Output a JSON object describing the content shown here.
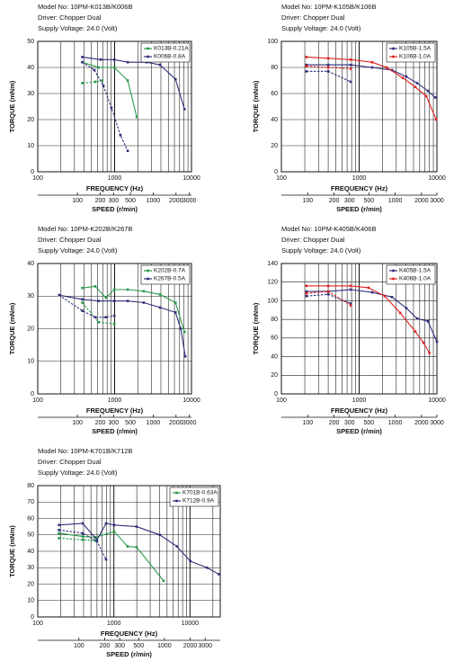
{
  "chart_data": [
    {
      "type": "line",
      "title": "Model No: 10PM-K013B/K006B",
      "subtitles": [
        "Driver: Chopper Dual",
        "Supply Voltage: 24.0 (Volt)"
      ],
      "xlabel": "FREQUENCY (Hz)",
      "ylabel": "TORQUE (mNm)",
      "x2label": "SPEED (r/min)",
      "xscale": "log",
      "xlim": [
        100,
        10000
      ],
      "xticks": [
        100,
        1000,
        10000
      ],
      "x2scale": "log",
      "x2lim": [
        30,
        3200
      ],
      "x2ticks": [
        100,
        200,
        300,
        500,
        1000,
        2000,
        3000
      ],
      "ylim": [
        0,
        50
      ],
      "yticks": [
        0,
        10,
        20,
        30,
        40,
        50
      ],
      "grid": true,
      "legend": "upper right",
      "series": [
        {
          "name": "K013B-0.21A",
          "color": "#2a9a4a",
          "style": "solid",
          "x": [
            380,
            620,
            990,
            1480,
            1940
          ],
          "values": [
            42,
            40,
            40,
            35,
            21
          ]
        },
        {
          "name": "K006B-0.8A",
          "color": "#2e2e7a",
          "style": "solid",
          "x": [
            380,
            660,
            990,
            1480,
            2600,
            3900,
            6200,
            8100
          ],
          "values": [
            44,
            43,
            43,
            42,
            42,
            41,
            35.5,
            24
          ]
        },
        {
          "color": "#2a9a4a",
          "style": "dashed",
          "x": [
            380,
            560,
            690
          ],
          "values": [
            34,
            34.5,
            35
          ]
        },
        {
          "color": "#2e2e7a",
          "style": "dashed",
          "x": [
            380,
            545,
            715,
            910,
            1190,
            1480
          ],
          "values": [
            42,
            39,
            33,
            24.5,
            14,
            8
          ]
        }
      ]
    },
    {
      "type": "line",
      "title": "Model No: 10PM-K105B/K106B",
      "subtitles": [
        "Driver: Chopper Dual",
        "Supply Voltage: 24.0 (Volt)"
      ],
      "xlabel": "FREQUENCY (Hz)",
      "ylabel": "TORQUE (mNm)",
      "x2label": "SPEED (r/min)",
      "xscale": "log",
      "xlim": [
        100,
        10000
      ],
      "xticks": [
        100,
        1000,
        10000
      ],
      "x2scale": "log",
      "x2lim": [
        50,
        3000
      ],
      "x2ticks": [
        100,
        200,
        300,
        500,
        1000,
        2000,
        3000
      ],
      "ylim": [
        0,
        100
      ],
      "yticks": [
        0,
        20,
        40,
        60,
        80,
        100
      ],
      "grid": true,
      "legend": "upper right",
      "series": [
        {
          "name": "K105B-1.5A",
          "color": "#2e2e7a",
          "style": "solid",
          "x": [
            210,
            400,
            780,
            1470,
            2640,
            4040,
            5560,
            7660,
            9500
          ],
          "values": [
            82,
            82,
            82,
            80,
            78,
            73,
            68,
            62,
            57
          ]
        },
        {
          "name": "K106B-1.0A",
          "color": "#e02020",
          "style": "solid",
          "x": [
            210,
            400,
            780,
            1470,
            2250,
            3650,
            5270,
            7280,
            9800
          ],
          "values": [
            88,
            87,
            86,
            84,
            80,
            72,
            65,
            58,
            40
          ]
        },
        {
          "color": "#2e2e7a",
          "style": "dashed",
          "x": [
            210,
            400,
            780
          ],
          "values": [
            77,
            77,
            69
          ]
        },
        {
          "color": "#e02020",
          "style": "dashed",
          "x": [
            210,
            400,
            780
          ],
          "values": [
            81,
            80,
            79
          ]
        }
      ]
    },
    {
      "type": "line",
      "title": "Model No: 10PM-K202B/K267B",
      "subtitles": [
        "Driver: Chopper Dual",
        "Supply Voltage: 24.0 (Volt)"
      ],
      "xlabel": "FREQUENCY (Hz)",
      "ylabel": "TORQUE (mNm)",
      "x2label": "SPEED (r/min)",
      "xscale": "log",
      "xlim": [
        100,
        10000
      ],
      "xticks": [
        100,
        1000,
        10000
      ],
      "x2scale": "log",
      "x2lim": [
        30,
        3200
      ],
      "x2ticks": [
        100,
        200,
        300,
        500,
        1000,
        2000,
        3000
      ],
      "ylim": [
        0,
        40
      ],
      "yticks": [
        0,
        10,
        20,
        30,
        40
      ],
      "grid": true,
      "legend": "upper right",
      "series": [
        {
          "name": "K202B-0.7A",
          "color": "#2a9a4a",
          "style": "solid",
          "x": [
            380,
            560,
            770,
            990,
            1480,
            2390,
            3900,
            6200,
            8100
          ],
          "values": [
            32.5,
            33,
            29.5,
            32,
            32,
            31.5,
            30.5,
            28,
            19
          ]
        },
        {
          "name": "K267B-0.5A",
          "color": "#2e2e7a",
          "style": "solid",
          "x": [
            190,
            380,
            620,
            990,
            1480,
            2390,
            3900,
            6200,
            7250,
            8300
          ],
          "values": [
            30.3,
            29,
            28.5,
            28.5,
            28.5,
            28,
            26.5,
            25,
            20,
            11.5
          ]
        },
        {
          "color": "#2a9a4a",
          "style": "dashed",
          "x": [
            380,
            620,
            990
          ],
          "values": [
            28,
            22,
            21.5
          ]
        },
        {
          "color": "#2e2e7a",
          "style": "dashed",
          "x": [
            190,
            380,
            560,
            770,
            990
          ],
          "values": [
            30.3,
            25.5,
            23.5,
            23.5,
            24
          ]
        }
      ]
    },
    {
      "type": "line",
      "title": "Model No: 10PM-K405B/K406B",
      "subtitles": [
        "Driver: Chopper Dual",
        "Supply Voltage: 24.0 (Volt)"
      ],
      "xlabel": "FREQUENCY (Hz)",
      "ylabel": "TORQUE (mNm)",
      "x2label": "SPEED (r/min)",
      "xscale": "log",
      "xlim": [
        100,
        10000
      ],
      "xticks": [
        100,
        1000,
        10000
      ],
      "x2scale": "log",
      "x2lim": [
        50,
        3000
      ],
      "x2ticks": [
        100,
        200,
        300,
        500,
        1000,
        2000,
        3000
      ],
      "ylim": [
        0,
        140
      ],
      "yticks": [
        0,
        20,
        40,
        60,
        80,
        100,
        120,
        140
      ],
      "grid": true,
      "legend": "upper right",
      "series": [
        {
          "name": "K405B-1.5A",
          "color": "#2e2e7a",
          "style": "solid",
          "x": [
            210,
            400,
            780,
            1470,
            2640,
            4040,
            5560,
            7660,
            10000
          ],
          "values": [
            110,
            110,
            112,
            109,
            104,
            92,
            81,
            78,
            56
          ]
        },
        {
          "name": "K406B-1.0A",
          "color": "#e02020",
          "style": "solid",
          "x": [
            210,
            400,
            780,
            1320,
            2130,
            3370,
            5270,
            6700,
            8000
          ],
          "values": [
            116,
            116,
            116,
            114,
            105,
            87,
            67,
            55,
            44
          ]
        },
        {
          "color": "#2e2e7a",
          "style": "dashed",
          "x": [
            210,
            400,
            780
          ],
          "values": [
            105,
            107,
            97
          ]
        },
        {
          "color": "#e02020",
          "style": "dashed",
          "x": [
            210,
            400,
            780
          ],
          "values": [
            108,
            110,
            95
          ]
        }
      ]
    },
    {
      "type": "line",
      "title": "Model No: 10PM-K701B/K712B",
      "subtitles": [
        "Driver: Chopper Dual",
        "Supply Voltage: 24.0 (Volt)"
      ],
      "xlabel": "FREQUENCY (Hz)",
      "ylabel": "TORQUE (mNm)",
      "x2label": "SPEED (r/min)",
      "xscale": "log",
      "xlim": [
        100,
        25000
      ],
      "xticks": [
        100,
        1000,
        10000
      ],
      "x2scale": "log",
      "x2lim": [
        33,
        4500
      ],
      "x2ticks": [
        100,
        200,
        300,
        500,
        1000,
        2000,
        3000
      ],
      "ylim": [
        0,
        80
      ],
      "yticks": [
        0,
        10,
        20,
        30,
        40,
        50,
        60,
        70,
        80
      ],
      "grid": true,
      "legend": "upper right",
      "series": [
        {
          "name": "K701B-0.63A",
          "color": "#2a9a4a",
          "style": "solid",
          "x": [
            190,
            390,
            570,
            1010,
            1510,
            1990,
            4500
          ],
          "values": [
            51,
            49,
            48.5,
            52,
            43,
            42.5,
            22
          ]
        },
        {
          "name": "K712B-0.9A",
          "color": "#2e2e7a",
          "style": "solid",
          "x": [
            190,
            390,
            600,
            790,
            1010,
            1990,
            4020,
            6740,
            10100,
            16700,
            24000
          ],
          "values": [
            56,
            57,
            47,
            57,
            56,
            55,
            50,
            43,
            34,
            30,
            26
          ]
        },
        {
          "color": "#2a9a4a",
          "style": "dashed",
          "x": [
            190,
            390,
            570
          ],
          "values": [
            48,
            47,
            46.5
          ]
        },
        {
          "color": "#2e2e7a",
          "style": "dashed",
          "x": [
            190,
            390,
            600,
            790
          ],
          "values": [
            53,
            51,
            46,
            35
          ]
        }
      ]
    }
  ]
}
